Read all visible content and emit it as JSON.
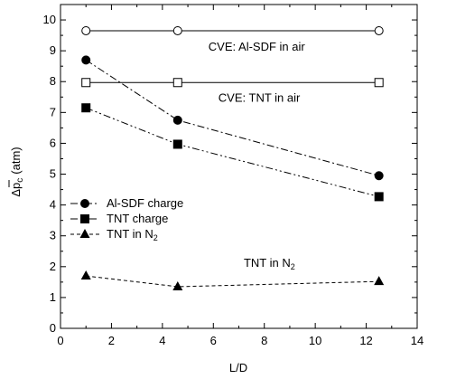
{
  "chart_data": {
    "type": "line",
    "xlabel": "L/D",
    "ylabel_main": "Δp",
    "ylabel_sub": "c",
    "ylabel_unit": "(atm)",
    "xlim": [
      0,
      14
    ],
    "ylim": [
      0,
      10.5
    ],
    "xticks": [
      0,
      2,
      4,
      6,
      8,
      10,
      12,
      14
    ],
    "yticks": [
      0,
      1,
      2,
      3,
      4,
      5,
      6,
      7,
      8,
      9,
      10
    ],
    "grid": false,
    "legend_position": "left-middle",
    "series": [
      {
        "name": "Al-SDF charge",
        "x": [
          1.0,
          4.6,
          12.5
        ],
        "values": [
          8.7,
          6.75,
          4.95
        ],
        "marker": "filled-circle",
        "line": "dashdot"
      },
      {
        "name": "TNT charge",
        "x": [
          1.0,
          4.6,
          12.5
        ],
        "values": [
          7.15,
          5.97,
          4.27
        ],
        "marker": "filled-square",
        "line": "dashdotdot"
      },
      {
        "name": "TNT in N",
        "name_sub": "2",
        "x": [
          1.0,
          4.6,
          12.5
        ],
        "values": [
          1.7,
          1.35,
          1.52
        ],
        "marker": "filled-triangle",
        "line": "dashed"
      },
      {
        "x": [
          1.0,
          4.6,
          12.5
        ],
        "values": [
          9.65,
          9.65,
          9.65
        ],
        "marker": "open-circle",
        "line": "solid"
      },
      {
        "x": [
          1.0,
          4.6,
          12.5
        ],
        "values": [
          7.97,
          7.97,
          7.97
        ],
        "marker": "open-square",
        "line": "solid"
      }
    ],
    "annotations": [
      {
        "text": "CVE: Al-SDF in air",
        "x": 7.7,
        "y": 9.0
      },
      {
        "text": "CVE: TNT in air",
        "x": 7.8,
        "y": 7.35
      },
      {
        "text": "TNT in N",
        "sub": "2",
        "x": 8.2,
        "y": 2.0
      }
    ]
  }
}
